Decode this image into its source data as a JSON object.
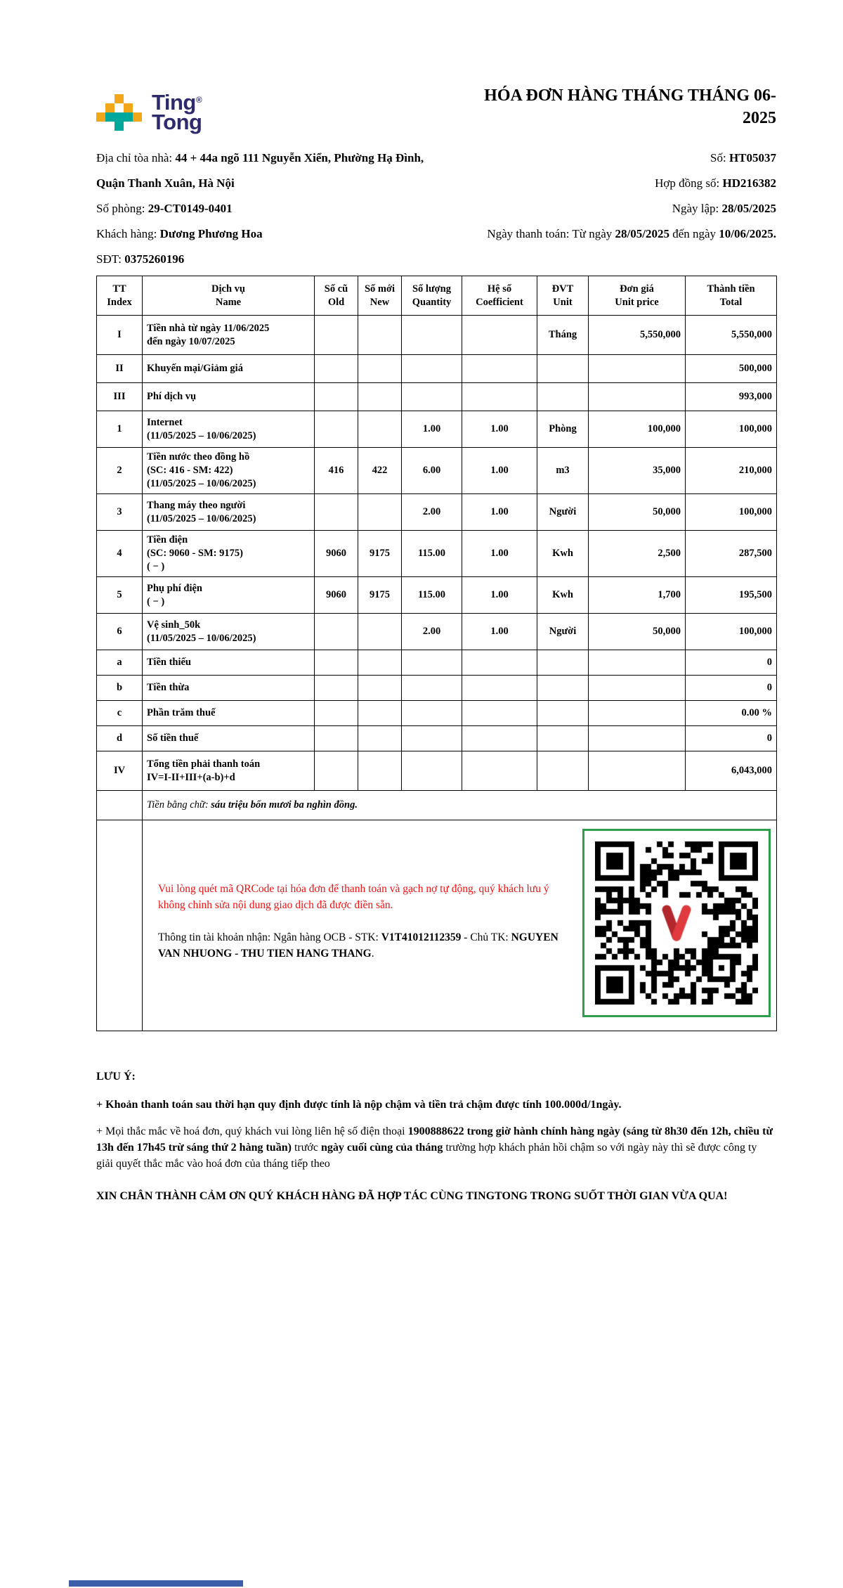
{
  "brand": {
    "line1": "Ting",
    "line2": "Tong",
    "reg": "®"
  },
  "title": {
    "line1": "HÓA ĐƠN HÀNG THÁNG THÁNG 06-",
    "line2": "2025"
  },
  "info": {
    "address": [
      {
        "t": "Địa chỉ tòa nhà: ",
        "b": 0
      },
      {
        "t": "44 + 44a ngõ 111 Nguyễn Xiển, Phường Hạ Đình,",
        "b": 1
      }
    ],
    "address2": "Quận Thanh Xuân, Hà Nội",
    "room": [
      {
        "t": "Số phòng: ",
        "b": 0
      },
      {
        "t": "29-CT0149-0401",
        "b": 1
      }
    ],
    "customer": [
      {
        "t": "Khách hàng: ",
        "b": 0
      },
      {
        "t": "Dương Phương Hoa",
        "b": 1
      }
    ],
    "phone": [
      {
        "t": "SĐT: ",
        "b": 0
      },
      {
        "t": "0375260196",
        "b": 1
      }
    ],
    "number": [
      {
        "t": "Số: ",
        "b": 0
      },
      {
        "t": "HT05037",
        "b": 1
      }
    ],
    "contract": [
      {
        "t": "Hợp đồng số: ",
        "b": 0
      },
      {
        "t": "HD216382",
        "b": 1
      }
    ],
    "issue_date": [
      {
        "t": "Ngày lập: ",
        "b": 0
      },
      {
        "t": "28/05/2025",
        "b": 1
      }
    ],
    "payment_period": [
      {
        "t": "Ngày thanh toán: Từ ngày ",
        "b": 0
      },
      {
        "t": "28/05/2025",
        "b": 1
      },
      {
        "t": " đến ngày ",
        "b": 0
      },
      {
        "t": "10/06/2025.",
        "b": 1
      }
    ]
  },
  "table": {
    "headers": [
      [
        "TT",
        "Index"
      ],
      [
        "Dịch vụ",
        "Name"
      ],
      [
        "Số cũ",
        "Old"
      ],
      [
        "Số mới",
        "New"
      ],
      [
        "Số lượng",
        "Quantity"
      ],
      [
        "Hệ số",
        "Coefficient"
      ],
      [
        "ĐVT",
        "Unit"
      ],
      [
        "Đơn giá",
        "Unit price"
      ],
      [
        "Thành tiền",
        "Total"
      ]
    ],
    "rows": [
      {
        "tt": "I",
        "name": [
          "Tiền nhà từ ngày 11/06/2025",
          "đến ngày 10/07/2025"
        ],
        "old": "",
        "new": "",
        "qty": "",
        "coef": "",
        "unit": "Tháng",
        "price": "5,550,000",
        "total": "5,550,000"
      },
      {
        "tt": "II",
        "name": [
          "Khuyến mại/Giảm giá"
        ],
        "old": "",
        "new": "",
        "qty": "",
        "coef": "",
        "unit": "",
        "price": "",
        "total": "500,000"
      },
      {
        "tt": "III",
        "name": [
          "Phí dịch vụ"
        ],
        "old": "",
        "new": "",
        "qty": "",
        "coef": "",
        "unit": "",
        "price": "",
        "total": "993,000"
      },
      {
        "tt": "1",
        "name": [
          "Internet",
          "(11/05/2025 – 10/06/2025)"
        ],
        "old": "",
        "new": "",
        "qty": "1.00",
        "coef": "1.00",
        "unit": "Phòng",
        "price": "100,000",
        "total": "100,000"
      },
      {
        "tt": "2",
        "name": [
          "Tiền nước theo đồng hồ",
          "(SC: 416 - SM: 422)",
          "(11/05/2025 – 10/06/2025)"
        ],
        "old": "416",
        "new": "422",
        "qty": "6.00",
        "coef": "1.00",
        "unit": "m3",
        "price": "35,000",
        "total": "210,000"
      },
      {
        "tt": "3",
        "name": [
          "Thang máy theo người",
          "(11/05/2025 – 10/06/2025)"
        ],
        "old": "",
        "new": "",
        "qty": "2.00",
        "coef": "1.00",
        "unit": "Người",
        "price": "50,000",
        "total": "100,000"
      },
      {
        "tt": "4",
        "name": [
          "Tiền điện",
          "(SC: 9060 - SM: 9175)",
          "( − )"
        ],
        "old": "9060",
        "new": "9175",
        "qty": "115.00",
        "coef": "1.00",
        "unit": "Kwh",
        "price": "2,500",
        "total": "287,500"
      },
      {
        "tt": "5",
        "name": [
          "Phụ phí điện",
          "( − )"
        ],
        "old": "9060",
        "new": "9175",
        "qty": "115.00",
        "coef": "1.00",
        "unit": "Kwh",
        "price": "1,700",
        "total": "195,500"
      },
      {
        "tt": "6",
        "name": [
          "Vệ sinh_50k",
          "(11/05/2025 – 10/06/2025)"
        ],
        "old": "",
        "new": "",
        "qty": "2.00",
        "coef": "1.00",
        "unit": "Người",
        "price": "50,000",
        "total": "100,000"
      },
      {
        "tt": "a",
        "name": [
          "Tiền thiếu"
        ],
        "old": "",
        "new": "",
        "qty": "",
        "coef": "",
        "unit": "",
        "price": "",
        "total": "0"
      },
      {
        "tt": "b",
        "name": [
          "Tiền thừa"
        ],
        "old": "",
        "new": "",
        "qty": "",
        "coef": "",
        "unit": "",
        "price": "",
        "total": "0"
      },
      {
        "tt": "c",
        "name": [
          "Phần trăm thuế"
        ],
        "old": "",
        "new": "",
        "qty": "",
        "coef": "",
        "unit": "",
        "price": "",
        "total": "0.00 %"
      },
      {
        "tt": "d",
        "name": [
          "Số tiền thuế"
        ],
        "old": "",
        "new": "",
        "qty": "",
        "coef": "",
        "unit": "",
        "price": "",
        "total": "0"
      },
      {
        "tt": "IV",
        "name": [
          "Tổng tiền phải thanh toán",
          "IV=I-II+III+(a-b)+d"
        ],
        "old": "",
        "new": "",
        "qty": "",
        "coef": "",
        "unit": "",
        "price": "",
        "total": "6,043,000"
      }
    ],
    "words_label": "Tiền bằng chữ: ",
    "words_value": "sáu triệu bốn mươi ba nghìn đồng."
  },
  "qr": {
    "note": "Vui lòng quét mã QRCode tại hóa đơn để thanh toán và gạch nợ tự động, quý khách lưu ý không chỉnh sửa nội dung giao dịch đã được điền sẵn.",
    "account": [
      {
        "t": "Thông tin tài khoản nhận: Ngân hàng OCB - STK: ",
        "b": 0
      },
      {
        "t": "V1T41012112359",
        "b": 1
      },
      {
        "t": " - Chủ TK: ",
        "b": 0
      },
      {
        "t": "NGUYEN VAN NHUONG - THU TIEN HANG THANG",
        "b": 1
      },
      {
        "t": ".",
        "b": 0
      }
    ]
  },
  "footer": {
    "heading": "LƯU Ý:",
    "late_fee": "+ Khoản thanh toán sau thời hạn quy định được tính là nộp chậm và tiền trả chậm được tính 100.000d/1ngày.",
    "contact": [
      {
        "t": "+ Mọi thắc mắc về hoá đơn, quý khách vui lòng liên hệ số điện thoại ",
        "b": 0
      },
      {
        "t": "1900888622 trong giờ hành chính hàng ngày (sáng từ 8h30 đến 12h, chiều từ 13h đến 17h45 trừ sáng thứ 2 hàng tuần)",
        "b": 1
      },
      {
        "t": " trước ",
        "b": 0
      },
      {
        "t": "ngày cuối cùng của tháng",
        "b": 1
      },
      {
        "t": " trường hợp khách phản hồi chậm so với ngày này thì sẽ được công ty giải quyết thắc mắc vào hoá đơn của tháng tiếp theo",
        "b": 0
      }
    ],
    "thanks": "XIN CHÂN THÀNH CẢM ƠN QUÝ KHÁCH HÀNG ĐÃ HỢP TÁC CÙNG TINGTONG TRONG SUỐT THỜI GIAN VỪA QUA!"
  },
  "colors": {
    "brand_navy": "#2D2A6E",
    "accent_yellow": "#F2A71B",
    "accent_teal": "#00A79B",
    "alert_red": "#EE1111",
    "qr_frame_green": "#2E9E4A",
    "strip_blue": "#3B5FA8"
  }
}
